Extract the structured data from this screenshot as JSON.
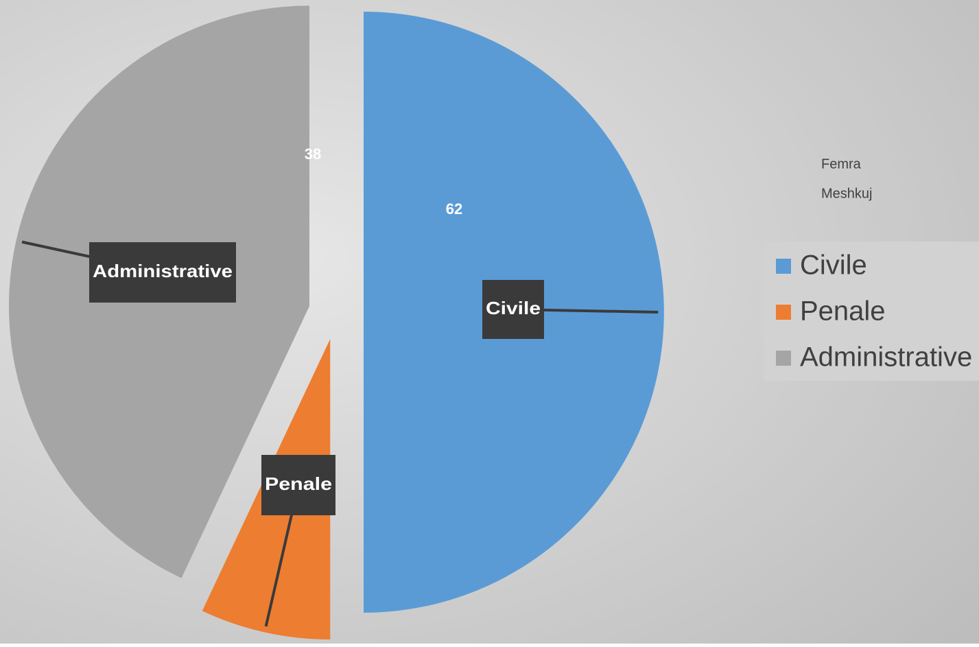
{
  "chart_data": {
    "type": "pie",
    "categories": [
      "Civile",
      "Penale",
      "Administrative"
    ],
    "values": [
      50,
      7,
      43
    ],
    "colors": [
      "#5b9bd5",
      "#ed7d31",
      "#a5a5a5"
    ],
    "annotations": [
      "38",
      "62",
      "Femra",
      "Meshkuj"
    ],
    "legend": "right"
  }
}
